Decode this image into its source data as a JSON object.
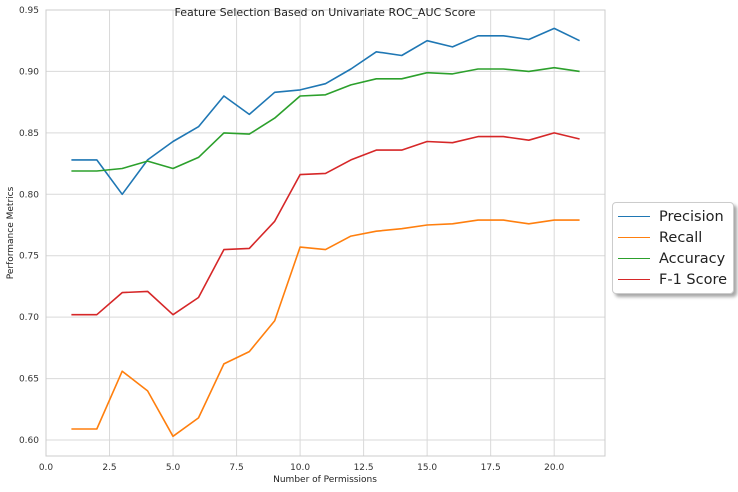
{
  "chart_data": {
    "type": "line",
    "title": "Feature Selection Based on Univariate ROC_AUC Score",
    "xlabel": "Number of Permissions",
    "ylabel": "Performance Metrics",
    "xlim": [
      0,
      22
    ],
    "ylim": [
      0.587,
      0.95
    ],
    "xticks": [
      "0.0",
      "2.5",
      "5.0",
      "7.5",
      "10.0",
      "12.5",
      "15.0",
      "17.5",
      "20.0"
    ],
    "yticks": [
      "0.60",
      "0.65",
      "0.70",
      "0.75",
      "0.80",
      "0.85",
      "0.90",
      "0.95"
    ],
    "grid": true,
    "legend_position": "center-right outside",
    "x": [
      1,
      2,
      3,
      4,
      5,
      6,
      7,
      8,
      9,
      10,
      11,
      12,
      13,
      14,
      15,
      16,
      17,
      18,
      19,
      20,
      21
    ],
    "series": [
      {
        "name": "Precision",
        "color": "#1f77b4",
        "values": [
          0.828,
          0.828,
          0.8,
          0.828,
          0.843,
          0.855,
          0.88,
          0.865,
          0.883,
          0.885,
          0.89,
          0.902,
          0.916,
          0.913,
          0.925,
          0.92,
          0.929,
          0.929,
          0.926,
          0.935,
          0.925
        ]
      },
      {
        "name": "Recall",
        "color": "#ff7f0e",
        "values": [
          0.609,
          0.609,
          0.656,
          0.64,
          0.603,
          0.618,
          0.662,
          0.672,
          0.697,
          0.757,
          0.755,
          0.766,
          0.77,
          0.772,
          0.775,
          0.776,
          0.779,
          0.779,
          0.776,
          0.779,
          0.779
        ]
      },
      {
        "name": "Accuracy",
        "color": "#2ca02c",
        "values": [
          0.819,
          0.819,
          0.821,
          0.827,
          0.821,
          0.83,
          0.85,
          0.849,
          0.862,
          0.88,
          0.881,
          0.889,
          0.894,
          0.894,
          0.899,
          0.898,
          0.902,
          0.902,
          0.9,
          0.903,
          0.9
        ]
      },
      {
        "name": "F-1 Score",
        "color": "#d62728",
        "values": [
          0.702,
          0.702,
          0.72,
          0.721,
          0.702,
          0.716,
          0.755,
          0.756,
          0.778,
          0.816,
          0.817,
          0.828,
          0.836,
          0.836,
          0.843,
          0.842,
          0.847,
          0.847,
          0.844,
          0.85,
          0.845
        ]
      }
    ]
  }
}
